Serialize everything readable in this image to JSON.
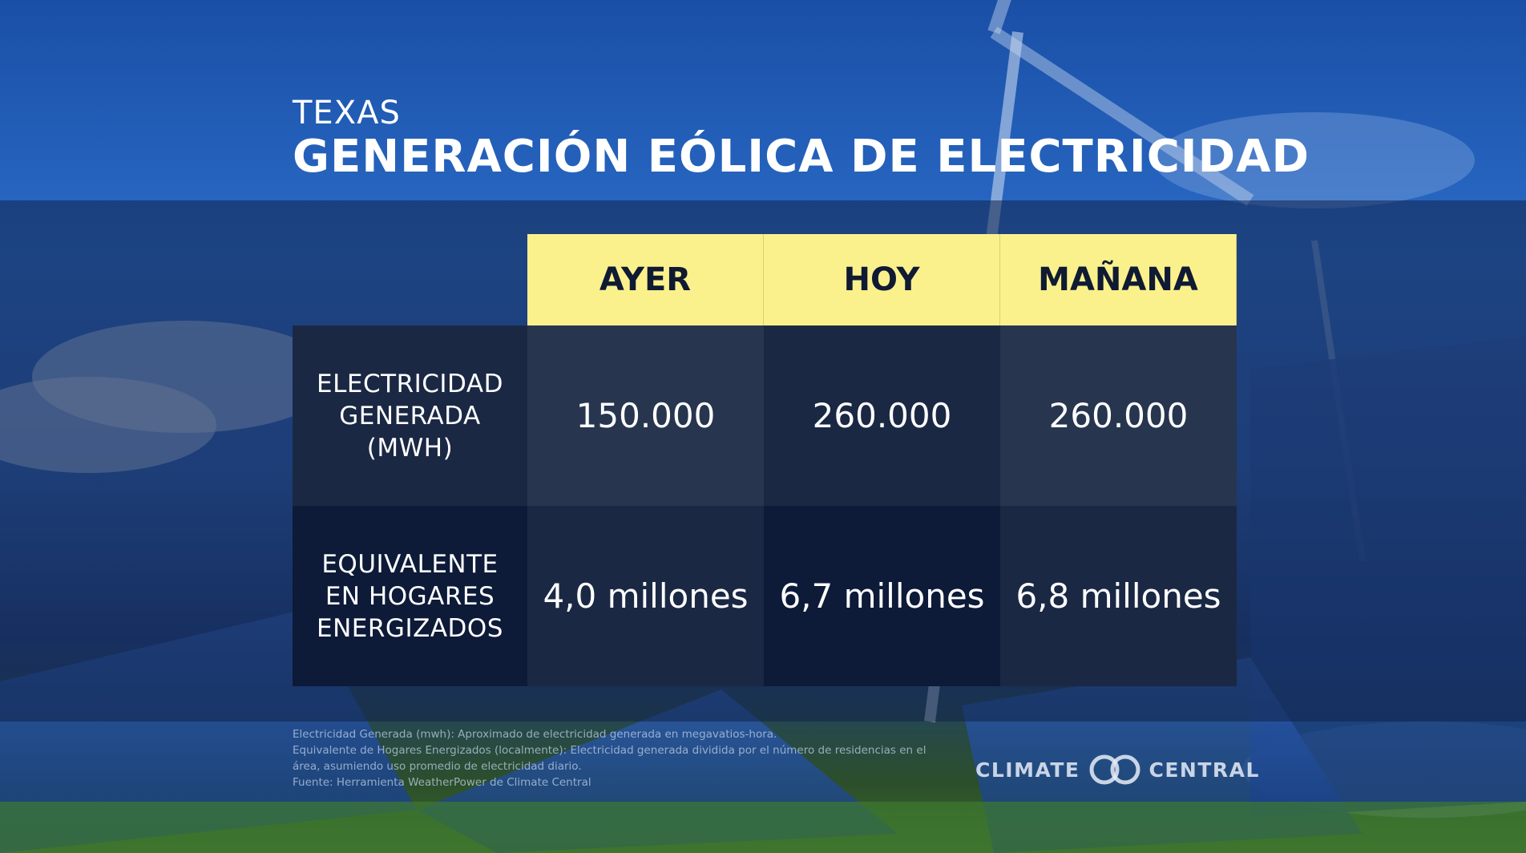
{
  "header": {
    "subtitle": "TEXAS",
    "title": "GENERACIÓN EÓLICA DE ELECTRICIDAD"
  },
  "chart_data": {
    "type": "table",
    "columns": [
      "AYER",
      "HOY",
      "MAÑANA"
    ],
    "rows": [
      {
        "label": "ELECTRICIDAD\nGENERADA\n(MWH)",
        "values": [
          "150.000",
          "260.000",
          "260.000"
        ]
      },
      {
        "label": "EQUIVALENTE\nEN HOGARES\nENERGIZADOS",
        "values": [
          "4,0 millones",
          "6,7 millones",
          "6,8 millones"
        ]
      }
    ]
  },
  "footnotes": [
    "Electricidad Generada (mwh): Aproximado de electricidad generada en megavatios-hora.",
    "Equivalente de Hogares Energizados (localmente): Electricidad generada dividida por el número de residencias en el",
    "área, asumiendo uso promedio de electricidad diario.",
    "Fuente: Herramienta WeatherPower de Climate Central"
  ],
  "brand": {
    "left": "CLIMATE",
    "right": "CENTRAL"
  },
  "colors": {
    "header_fill": "#fbf18c",
    "header_text": "#0f1a33",
    "cell_dark": "#1b2844",
    "cell_mid": "#27354f",
    "cell_darkest": "#0d1a38"
  }
}
